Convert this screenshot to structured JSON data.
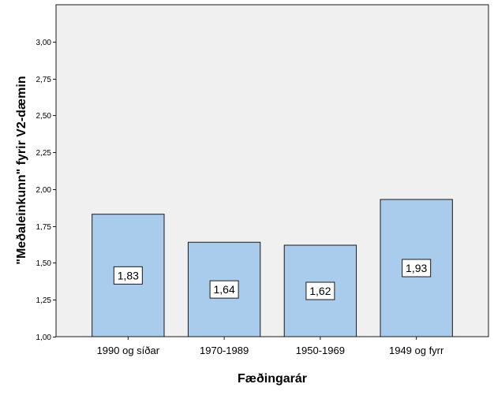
{
  "chart_data": {
    "type": "bar",
    "categories": [
      "1990 og síðar",
      "1970-1989",
      "1950-1969",
      "1949 og fyrr"
    ],
    "values": [
      1.83,
      1.64,
      1.62,
      1.93
    ],
    "data_labels": [
      "1,83",
      "1,64",
      "1,62",
      "1,93"
    ],
    "xlabel": "Fæðingarár",
    "ylabel": "\"Meðaleinkunn\" fyrir V2-dæmin",
    "ylim": [
      1.0,
      3.25
    ],
    "yticks": [
      1.0,
      1.25,
      1.5,
      1.75,
      2.0,
      2.25,
      2.5,
      2.75,
      3.0
    ],
    "ytick_labels": [
      "1,00",
      "1,25",
      "1,50",
      "1,75",
      "2,00",
      "2,25",
      "2,50",
      "2,75",
      "3,00"
    ],
    "grid": false,
    "colors": {
      "bar_fill": "#a9cbec",
      "bar_stroke": "#1a1a1a",
      "plot_background": "#f0f0f0",
      "label_box_fill": "#ffffff"
    }
  }
}
